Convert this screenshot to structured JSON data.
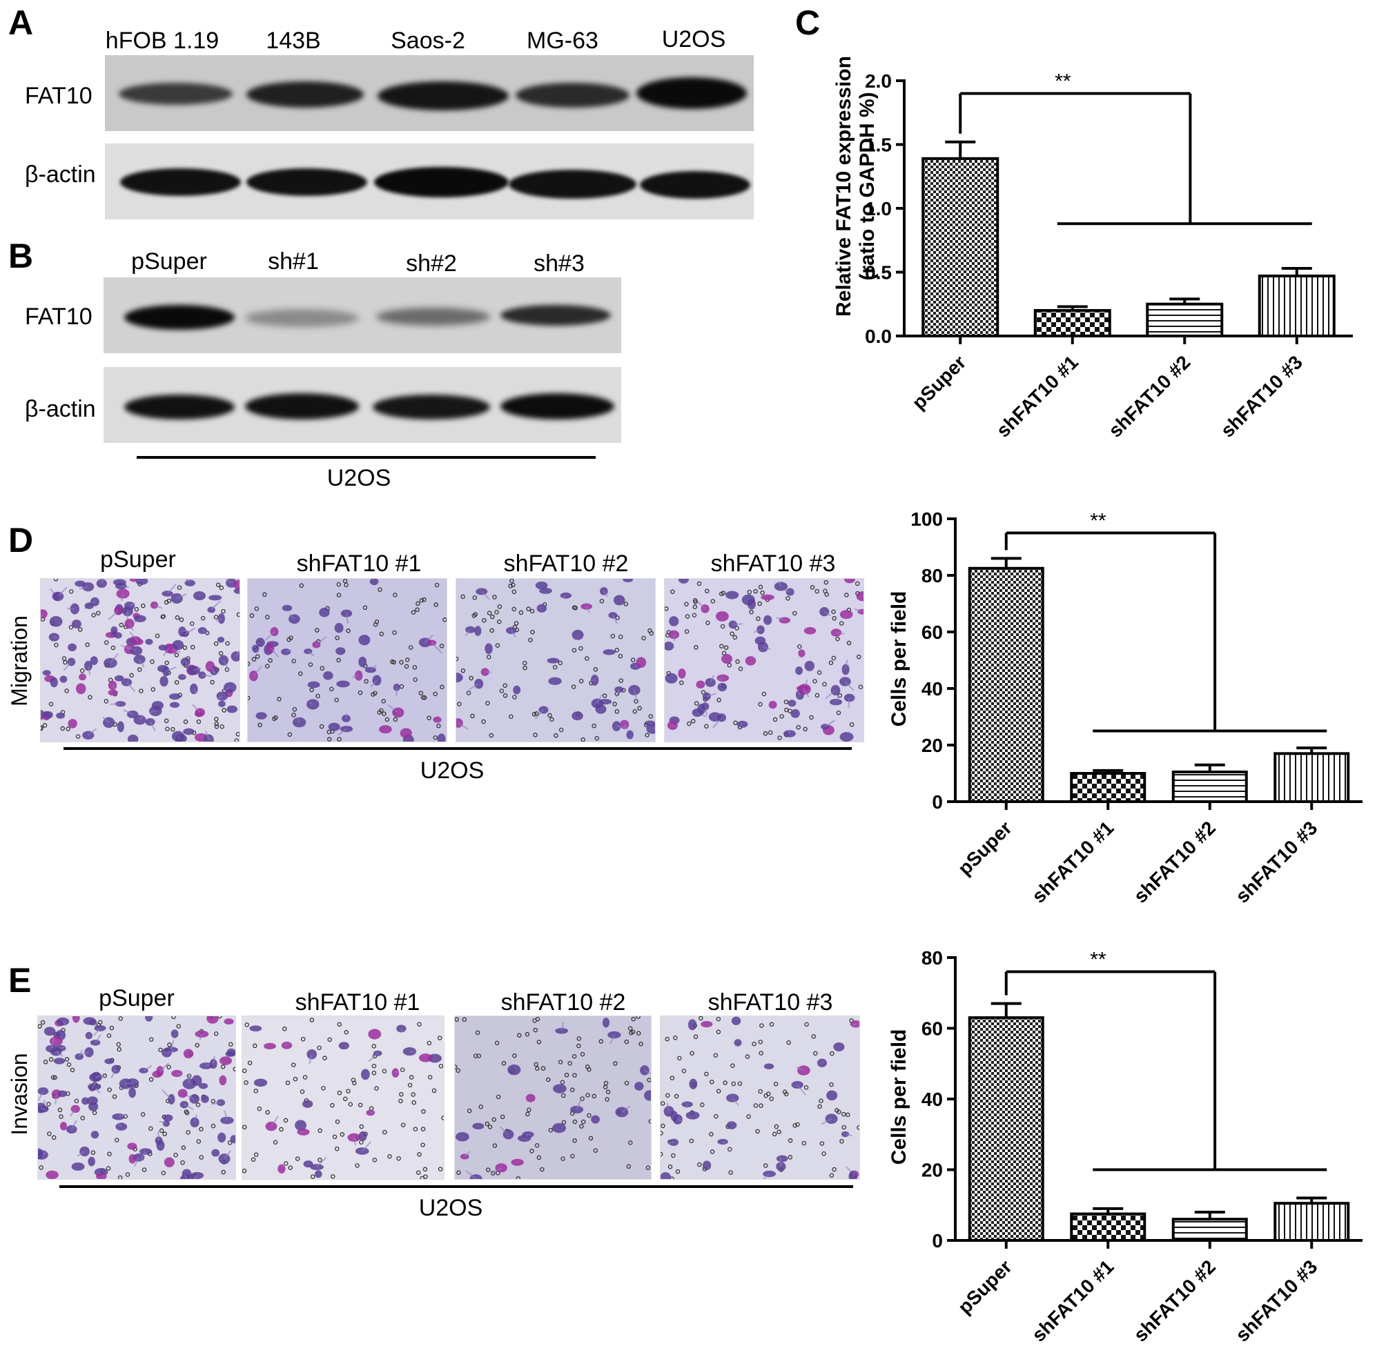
{
  "panels": {
    "A": {
      "letter": "A",
      "lanes": [
        "hFOB 1.19",
        "143B",
        "Saos-2",
        "MG-63",
        "U2OS"
      ],
      "rows": [
        "FAT10",
        "β-actin"
      ]
    },
    "B": {
      "letter": "B",
      "lanes": [
        "pSuper",
        "sh#1",
        "sh#2",
        "sh#3"
      ],
      "rows": [
        "FAT10",
        "β-actin"
      ],
      "cell_line": "U2OS"
    },
    "C": {
      "letter": "C"
    },
    "D": {
      "letter": "D",
      "assay": "Migration",
      "conditions": [
        "pSuper",
        "shFAT10 #1",
        "shFAT10 #2",
        "shFAT10 #3"
      ],
      "cell_line": "U2OS"
    },
    "E": {
      "letter": "E",
      "assay": "Invasion",
      "conditions": [
        "pSuper",
        "shFAT10 #1",
        "shFAT10 #2",
        "shFAT10 #3"
      ],
      "cell_line": "U2OS"
    }
  },
  "chart_data": [
    {
      "type": "bar",
      "panel": "C",
      "categories": [
        "pSuper",
        "shFAT10 #1",
        "shFAT10 #2",
        "shFAT10 #3"
      ],
      "values": [
        1.39,
        0.2,
        0.25,
        0.47
      ],
      "errors": [
        0.13,
        0.03,
        0.04,
        0.06
      ],
      "ylabel": "Relative FAT10 expression",
      "ylabel2": "(ratio to  GAPDH %)",
      "ylim": [
        0,
        2.0
      ],
      "yticks": [
        "0.0",
        "0.5",
        "1.0",
        "1.5",
        "2.0"
      ],
      "significance": "**"
    },
    {
      "type": "bar",
      "panel": "D",
      "categories": [
        "pSuper",
        "shFAT10 #1",
        "shFAT10 #2",
        "shFAT10 #3"
      ],
      "values": [
        82.5,
        10,
        10.5,
        17
      ],
      "errors": [
        3.5,
        1,
        2.5,
        2
      ],
      "ylabel": "Cells per field",
      "ylim": [
        0,
        100
      ],
      "yticks": [
        "0",
        "20",
        "40",
        "60",
        "80",
        "100"
      ],
      "significance": "**"
    },
    {
      "type": "bar",
      "panel": "E",
      "categories": [
        "pSuper",
        "shFAT10 #1",
        "shFAT10 #2",
        "shFAT10 #3"
      ],
      "values": [
        63,
        7.5,
        6,
        10.5
      ],
      "errors": [
        4,
        1.5,
        2,
        1.5
      ],
      "ylabel": "Cells per field",
      "ylim": [
        0,
        80
      ],
      "yticks": [
        "0",
        "20",
        "40",
        "60",
        "80"
      ],
      "significance": "**"
    }
  ]
}
